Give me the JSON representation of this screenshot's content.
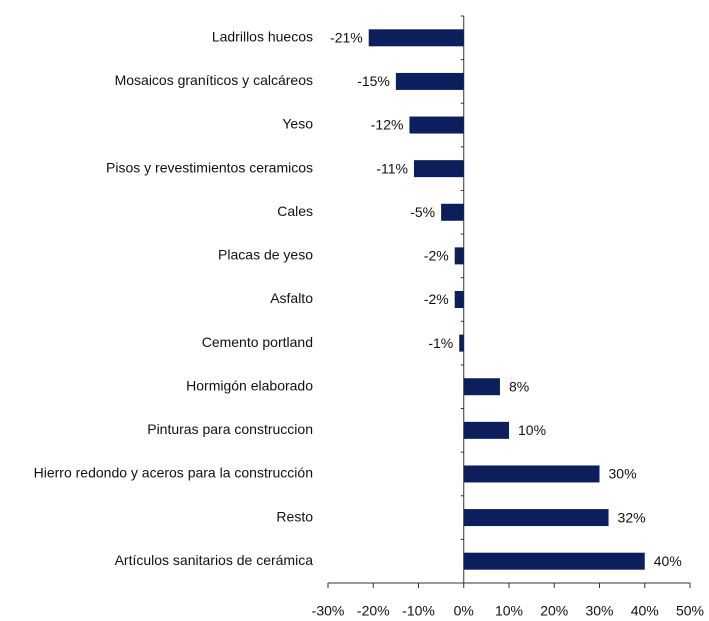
{
  "chart_data": {
    "type": "bar",
    "orientation": "horizontal",
    "categories": [
      "Ladrillos huecos",
      "Mosaicos graníticos y calcáreos",
      "Yeso",
      "Pisos y revestimientos ceramicos",
      "Cales",
      "Placas de yeso",
      "Asfalto",
      "Cemento portland",
      "Hormigón elaborado",
      "Pinturas para construccion",
      "Hierro redondo y aceros para la construcción",
      "Resto",
      "Artículos sanitarios de cerámica"
    ],
    "values": [
      -21,
      -15,
      -12,
      -11,
      -5,
      -2,
      -2,
      -1,
      8,
      10,
      30,
      32,
      40
    ],
    "value_labels": [
      "-21%",
      "-15%",
      "-12%",
      "-11%",
      "-5%",
      "-2%",
      "-2%",
      "-1%",
      "8%",
      "10%",
      "30%",
      "32%",
      "40%"
    ],
    "color": "#0c1f5c",
    "xlim": [
      -30,
      50
    ],
    "xticks": [
      {
        "value": -30,
        "label": "-30%"
      },
      {
        "value": -20,
        "label": "-20%"
      },
      {
        "value": -10,
        "label": "-10%"
      },
      {
        "value": 0,
        "label": "0%"
      },
      {
        "value": 10,
        "label": "10%"
      },
      {
        "value": 20,
        "label": "20%"
      },
      {
        "value": 30,
        "label": "30%"
      },
      {
        "value": 40,
        "label": "40%"
      },
      {
        "value": 50,
        "label": "50%"
      }
    ],
    "grid": false
  }
}
